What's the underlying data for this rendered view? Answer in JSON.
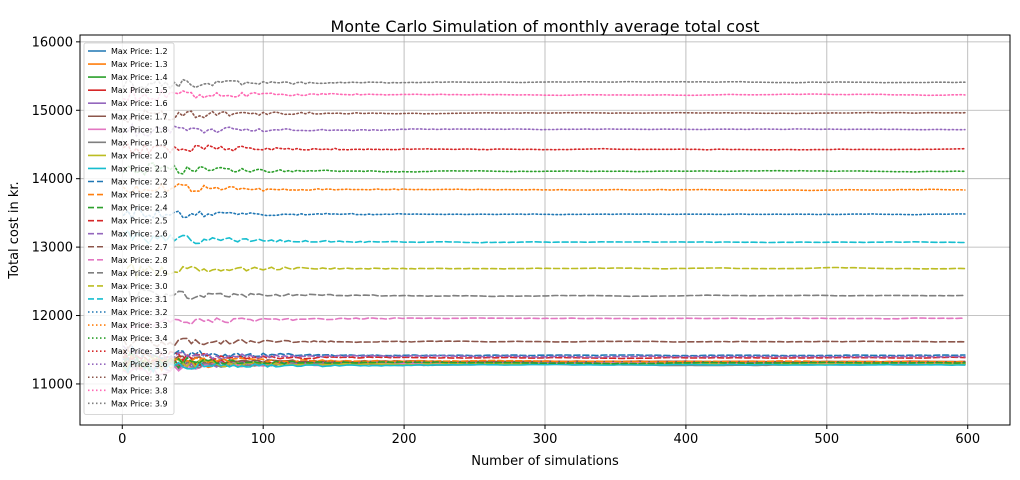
{
  "chart_data": {
    "type": "line",
    "title": "Monte Carlo Simulation of monthly average total cost",
    "xlabel": "Number of simulations",
    "ylabel": "Total cost in kr.",
    "xlim": [
      -30,
      630
    ],
    "ylim": [
      10400,
      16100
    ],
    "xticks": [
      0,
      100,
      200,
      300,
      400,
      500,
      600
    ],
    "yticks": [
      11000,
      12000,
      13000,
      14000,
      15000,
      16000
    ],
    "grid": true,
    "legend_position": "upper-left",
    "series": [
      {
        "name": "Max Price: 1.2",
        "color": "#1f77b4",
        "dash": "solid",
        "level": 11300,
        "start": 11280
      },
      {
        "name": "Max Price: 1.3",
        "color": "#ff7f0e",
        "dash": "solid",
        "level": 11300,
        "start": 11250
      },
      {
        "name": "Max Price: 1.4",
        "color": "#2ca02c",
        "dash": "solid",
        "level": 11290,
        "start": 11300
      },
      {
        "name": "Max Price: 1.5",
        "color": "#d62728",
        "dash": "solid",
        "level": 11310,
        "start": 11320
      },
      {
        "name": "Max Price: 1.6",
        "color": "#9467bd",
        "dash": "solid",
        "level": 11320,
        "start": 11210
      },
      {
        "name": "Max Price: 1.7",
        "color": "#8c564b",
        "dash": "solid",
        "level": 11330,
        "start": 11360
      },
      {
        "name": "Max Price: 1.8",
        "color": "#e377c2",
        "dash": "solid",
        "level": 11300,
        "start": 11170
      },
      {
        "name": "Max Price: 1.9",
        "color": "#7f7f7f",
        "dash": "solid",
        "level": 11280,
        "start": 11300
      },
      {
        "name": "Max Price: 2.0",
        "color": "#bcbd22",
        "dash": "solid",
        "level": 11290,
        "start": 11310
      },
      {
        "name": "Max Price: 2.1",
        "color": "#17becf",
        "dash": "solid",
        "level": 11280,
        "start": 11260
      },
      {
        "name": "Max Price: 2.2",
        "color": "#1f77b4",
        "dash": "dashed",
        "level": 11420,
        "start": 11450
      },
      {
        "name": "Max Price: 2.3",
        "color": "#ff7f0e",
        "dash": "dashed",
        "level": 11330,
        "start": 11400
      },
      {
        "name": "Max Price: 2.4",
        "color": "#2ca02c",
        "dash": "dashed",
        "level": 11310,
        "start": 11350
      },
      {
        "name": "Max Price: 2.5",
        "color": "#d62728",
        "dash": "dashed",
        "level": 11380,
        "start": 11430
      },
      {
        "name": "Max Price: 2.6",
        "color": "#9467bd",
        "dash": "dashed",
        "level": 11400,
        "start": 11460
      },
      {
        "name": "Max Price: 2.7",
        "color": "#8c564b",
        "dash": "dashed",
        "level": 11620,
        "start": 11620
      },
      {
        "name": "Max Price: 2.8",
        "color": "#e377c2",
        "dash": "dashed",
        "level": 11960,
        "start": 11830
      },
      {
        "name": "Max Price: 2.9",
        "color": "#7f7f7f",
        "dash": "dashed",
        "level": 12290,
        "start": 12310
      },
      {
        "name": "Max Price: 3.0",
        "color": "#bcbd22",
        "dash": "dashed",
        "level": 12690,
        "start": 12660
      },
      {
        "name": "Max Price: 3.1",
        "color": "#17becf",
        "dash": "dashed",
        "level": 13070,
        "start": 13160
      },
      {
        "name": "Max Price: 3.2",
        "color": "#1f77b4",
        "dash": "dotted",
        "level": 13480,
        "start": 13470
      },
      {
        "name": "Max Price: 3.3",
        "color": "#ff7f0e",
        "dash": "dotted",
        "level": 13840,
        "start": 13870
      },
      {
        "name": "Max Price: 3.4",
        "color": "#2ca02c",
        "dash": "dotted",
        "level": 14110,
        "start": 14160
      },
      {
        "name": "Max Price: 3.5",
        "color": "#d62728",
        "dash": "dotted",
        "level": 14430,
        "start": 14480
      },
      {
        "name": "Max Price: 3.6",
        "color": "#9467bd",
        "dash": "dotted",
        "level": 14720,
        "start": 14710
      },
      {
        "name": "Max Price: 3.7",
        "color": "#8c564b",
        "dash": "dotted",
        "level": 14960,
        "start": 14900
      },
      {
        "name": "Max Price: 3.8",
        "color": "#ff69b4",
        "dash": "dotted",
        "level": 15230,
        "start": 15220
      },
      {
        "name": "Max Price: 3.9",
        "color": "#7f7f7f",
        "dash": "dotted",
        "level": 15410,
        "start": 15360
      }
    ]
  }
}
